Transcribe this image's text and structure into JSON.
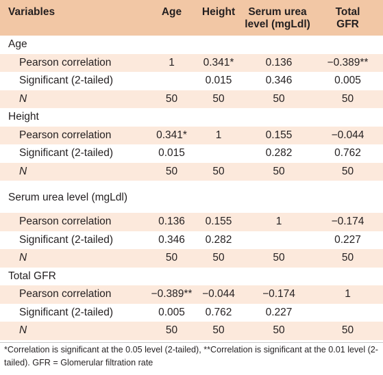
{
  "header": {
    "variables": "Variables",
    "age": "Age",
    "height": "Height",
    "serum_line1": "Serum urea",
    "serum_line2": "level (mgLdl)",
    "gfr_line1": "Total",
    "gfr_line2": "GFR"
  },
  "groups": [
    {
      "name": "Age",
      "rows": [
        {
          "label": "Pearson correlation",
          "age": "1",
          "height": "0.341*",
          "serum": "0.136",
          "gfr": "−0.389**"
        },
        {
          "label": "Significant (2-tailed)",
          "age": "",
          "height": "0.015",
          "serum": "0.346",
          "gfr": "0.005"
        },
        {
          "label": "N",
          "age": "50",
          "height": "50",
          "serum": "50",
          "gfr": "50"
        }
      ]
    },
    {
      "name": "Height",
      "rows": [
        {
          "label": "Pearson correlation",
          "age": "0.341*",
          "height": "1",
          "serum": "0.155",
          "gfr": "−0.044"
        },
        {
          "label": "Significant (2-tailed)",
          "age": "0.015",
          "height": "",
          "serum": "0.282",
          "gfr": "0.762"
        },
        {
          "label": "N",
          "age": "50",
          "height": "50",
          "serum": "50",
          "gfr": "50"
        }
      ]
    },
    {
      "name": "Serum urea level (mgLdl)",
      "rows": [
        {
          "label": "Pearson correlation",
          "age": "0.136",
          "height": "0.155",
          "serum": "1",
          "gfr": "−0.174"
        },
        {
          "label": "Significant (2-tailed)",
          "age": "0.346",
          "height": "0.282",
          "serum": "",
          "gfr": "0.227"
        },
        {
          "label": "N",
          "age": "50",
          "height": "50",
          "serum": "50",
          "gfr": "50"
        }
      ]
    },
    {
      "name": "Total GFR",
      "rows": [
        {
          "label": "Pearson correlation",
          "age": "−0.389**",
          "height": "−0.044",
          "serum": "−0.174",
          "gfr": "1"
        },
        {
          "label": "Significant (2-tailed)",
          "age": "0.005",
          "height": "0.762",
          "serum": "0.227",
          "gfr": ""
        },
        {
          "label": "N",
          "age": "50",
          "height": "50",
          "serum": "50",
          "gfr": "50"
        }
      ]
    }
  ],
  "footnote": "*Correlation is significant at the 0.05 level (2-tailed), **Correlation is significant at the 0.01 level (2-tailed). GFR = Glomerular filtration rate",
  "colors": {
    "header_bg": "#f2c7a5",
    "stripe_bg": "#fce9dc",
    "text": "#231f20"
  }
}
